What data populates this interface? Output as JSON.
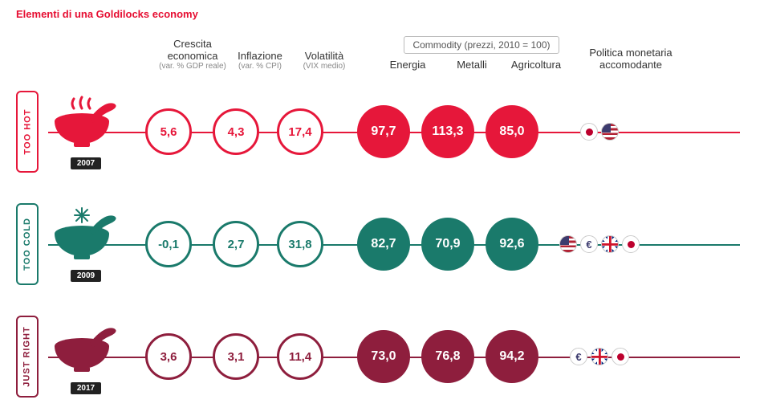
{
  "title": "Elementi di una Goldilocks economy",
  "columns": {
    "growth": {
      "label": "Crescita economica",
      "sub": "(var. % GDP reale)"
    },
    "inflation": {
      "label": "Inflazione",
      "sub": "(var. % CPI)"
    },
    "volatility": {
      "label": "Volatilità",
      "sub": "(VIX medio)"
    },
    "commodity_box": "Commodity (prezzi, 2010 = 100)",
    "energy": {
      "label": "Energia"
    },
    "metals": {
      "label": "Metalli"
    },
    "agri": {
      "label": "Agricoltura"
    },
    "policy": {
      "label": "Politica monetaria accomodante"
    }
  },
  "rows": [
    {
      "key": "hot",
      "tab": "TOO HOT",
      "year": "2007",
      "color": "#e6173a",
      "icon": "steam",
      "growth": "5,6",
      "inflation": "4,3",
      "volatility": "17,4",
      "energy": "97,7",
      "metals": "113,3",
      "agri": "85,0",
      "flags": [
        "jp",
        "us"
      ]
    },
    {
      "key": "cold",
      "tab": "TOO COLD",
      "year": "2009",
      "color": "#1a7a6b",
      "icon": "snow",
      "growth": "-0,1",
      "inflation": "2,7",
      "volatility": "31,8",
      "energy": "82,7",
      "metals": "70,9",
      "agri": "92,6",
      "flags": [
        "us",
        "eu",
        "uk",
        "jp"
      ]
    },
    {
      "key": "just",
      "tab": "JUST RIGHT",
      "year": "2017",
      "color": "#8e1e3d",
      "icon": "plain",
      "growth": "3,6",
      "inflation": "3,1",
      "volatility": "11,4",
      "energy": "73,0",
      "metals": "76,8",
      "agri": "94,2",
      "flags": [
        "eu",
        "uk",
        "jp"
      ]
    }
  ]
}
